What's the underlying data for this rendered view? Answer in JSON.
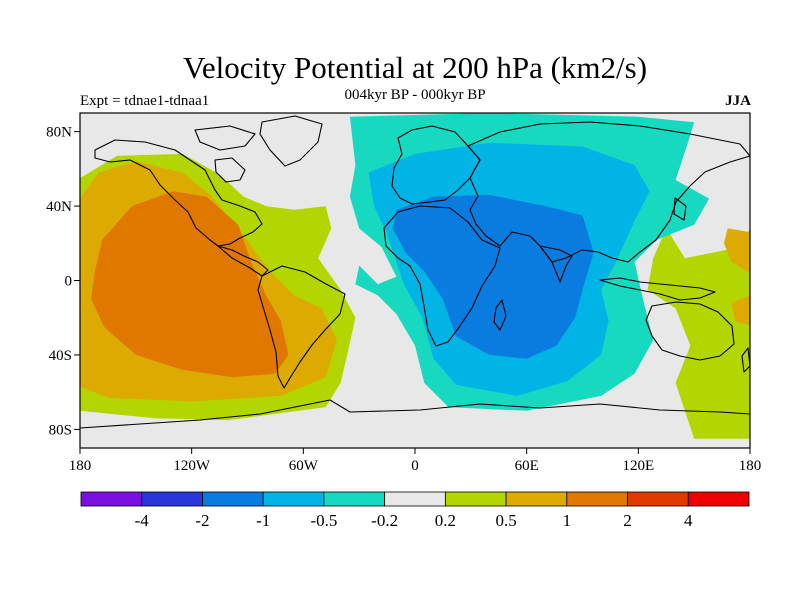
{
  "header": {
    "title": "Velocity Potential at 200 hPa (km2/s)",
    "subtitle": "004kyr BP - 000kyr BP",
    "left_label": "Expt = tdnae1-tdnaa1",
    "right_label": "JJA"
  },
  "map": {
    "projection": "cylindrical-equidistant",
    "lon_range": [
      -180,
      180
    ],
    "lat_range": [
      -90,
      90
    ],
    "lat_ticks": [
      {
        "value": 80,
        "label": "80N"
      },
      {
        "value": 40,
        "label": "40N"
      },
      {
        "value": 0,
        "label": "0"
      },
      {
        "value": -40,
        "label": "40S"
      },
      {
        "value": -80,
        "label": "80S"
      }
    ],
    "lon_ticks": [
      {
        "value": -180,
        "label": "180"
      },
      {
        "value": -120,
        "label": "120W"
      },
      {
        "value": -60,
        "label": "60W"
      },
      {
        "value": 0,
        "label": "0"
      },
      {
        "value": 60,
        "label": "60E"
      },
      {
        "value": 120,
        "label": "120E"
      },
      {
        "value": 180,
        "label": "180"
      }
    ],
    "background_color": "#e8e8e8"
  },
  "colorbar": {
    "colors": [
      "#7a10e0",
      "#2a36d8",
      "#0a7ce0",
      "#00b4e6",
      "#16d9c0",
      "#e8e8e8",
      "#b4d600",
      "#dcaa00",
      "#e07800",
      "#e03a00",
      "#ee0000"
    ],
    "labels": [
      "-4",
      "-2",
      "-1",
      "-0.5",
      "-0.2",
      "0.2",
      "0.5",
      "1",
      "2",
      "4"
    ]
  },
  "chart_data": {
    "type": "map",
    "variable": "Velocity Potential at 200 hPa",
    "units": "km2/s",
    "difference": "004kyr BP - 000kyr BP",
    "season": "JJA",
    "contour_levels": [
      -4,
      -2,
      -1,
      -0.5,
      -0.2,
      0.2,
      0.5,
      1,
      2,
      4
    ],
    "regions": [
      {
        "level": "0.2 to 0.5",
        "color": "#b4d600",
        "path": [
          [
            -180,
            55
          ],
          [
            -160,
            67
          ],
          [
            -125,
            68
          ],
          [
            -105,
            57
          ],
          [
            -92,
            45
          ],
          [
            -80,
            40
          ],
          [
            -65,
            38
          ],
          [
            -48,
            40
          ],
          [
            -45,
            28
          ],
          [
            -52,
            12
          ],
          [
            -40,
            -5
          ],
          [
            -32,
            -20
          ],
          [
            -36,
            -38
          ],
          [
            -40,
            -55
          ],
          [
            -48,
            -68
          ],
          [
            -100,
            -75
          ],
          [
            -140,
            -74
          ],
          [
            -180,
            -70
          ]
        ]
      },
      {
        "level": "0.5 to 1",
        "color": "#dcaa00",
        "path": [
          [
            -180,
            44
          ],
          [
            -170,
            58
          ],
          [
            -150,
            64
          ],
          [
            -125,
            58
          ],
          [
            -110,
            46
          ],
          [
            -95,
            28
          ],
          [
            -78,
            5
          ],
          [
            -65,
            -8
          ],
          [
            -50,
            -15
          ],
          [
            -42,
            -32
          ],
          [
            -48,
            -52
          ],
          [
            -72,
            -62
          ],
          [
            -120,
            -65
          ],
          [
            -165,
            -63
          ],
          [
            -180,
            -57
          ]
        ]
      },
      {
        "level": "1 to 2",
        "color": "#e07800",
        "path": [
          [
            -172,
            5
          ],
          [
            -168,
            22
          ],
          [
            -152,
            40
          ],
          [
            -130,
            48
          ],
          [
            -112,
            45
          ],
          [
            -95,
            30
          ],
          [
            -88,
            10
          ],
          [
            -80,
            -8
          ],
          [
            -72,
            -22
          ],
          [
            -68,
            -40
          ],
          [
            -75,
            -50
          ],
          [
            -98,
            -52
          ],
          [
            -125,
            -48
          ],
          [
            -150,
            -40
          ],
          [
            -167,
            -25
          ],
          [
            -174,
            -10
          ]
        ]
      },
      {
        "level": "0.2 to 0.5",
        "color": "#b4d600",
        "path": [
          [
            135,
            28
          ],
          [
            145,
            12
          ],
          [
            175,
            18
          ],
          [
            180,
            28
          ],
          [
            180,
            -85
          ],
          [
            150,
            -85
          ],
          [
            140,
            -55
          ],
          [
            148,
            -35
          ],
          [
            140,
            -15
          ],
          [
            125,
            -5
          ],
          [
            128,
            12
          ]
        ]
      },
      {
        "level": "0.5 to 1",
        "color": "#dcaa00",
        "path": [
          [
            168,
            28
          ],
          [
            180,
            26
          ],
          [
            180,
            4
          ],
          [
            170,
            10
          ],
          [
            166,
            20
          ]
        ]
      },
      {
        "level": "0.5 to 1",
        "color": "#dcaa00",
        "path": [
          [
            170,
            -12
          ],
          [
            180,
            -8
          ],
          [
            180,
            -24
          ],
          [
            172,
            -22
          ]
        ]
      },
      {
        "level": "-0.5 to -0.2",
        "color": "#16d9c0",
        "path": [
          [
            -35,
            88
          ],
          [
            40,
            90
          ],
          [
            120,
            88
          ],
          [
            150,
            85
          ],
          [
            146,
            72
          ],
          [
            140,
            54
          ],
          [
            158,
            44
          ],
          [
            150,
            30
          ],
          [
            130,
            22
          ],
          [
            118,
            10
          ],
          [
            122,
            -8
          ],
          [
            128,
            -32
          ],
          [
            118,
            -50
          ],
          [
            100,
            -62
          ],
          [
            60,
            -70
          ],
          [
            18,
            -68
          ],
          [
            5,
            -55
          ],
          [
            0,
            -35
          ],
          [
            -10,
            -18
          ],
          [
            -20,
            -8
          ],
          [
            -32,
            -2
          ],
          [
            -30,
            8
          ],
          [
            -20,
            -2
          ],
          [
            -10,
            2
          ],
          [
            -18,
            18
          ],
          [
            -30,
            28
          ],
          [
            -35,
            45
          ],
          [
            -32,
            62
          ]
        ]
      },
      {
        "level": "-1 to -0.5",
        "color": "#00b4e6",
        "path": [
          [
            -25,
            58
          ],
          [
            0,
            68
          ],
          [
            40,
            74
          ],
          [
            90,
            72
          ],
          [
            118,
            62
          ],
          [
            126,
            48
          ],
          [
            118,
            32
          ],
          [
            108,
            10
          ],
          [
            100,
            -5
          ],
          [
            104,
            -22
          ],
          [
            100,
            -40
          ],
          [
            82,
            -54
          ],
          [
            55,
            -62
          ],
          [
            22,
            -56
          ],
          [
            10,
            -42
          ],
          [
            4,
            -20
          ],
          [
            -6,
            -2
          ],
          [
            -10,
            10
          ],
          [
            -15,
            25
          ],
          [
            -22,
            40
          ]
        ]
      },
      {
        "level": "-2 to -1",
        "color": "#0a7ce0",
        "path": [
          [
            -10,
            38
          ],
          [
            10,
            45
          ],
          [
            40,
            46
          ],
          [
            70,
            40
          ],
          [
            90,
            35
          ],
          [
            96,
            15
          ],
          [
            90,
            -5
          ],
          [
            86,
            -20
          ],
          [
            76,
            -35
          ],
          [
            60,
            -42
          ],
          [
            40,
            -40
          ],
          [
            22,
            -30
          ],
          [
            15,
            -10
          ],
          [
            5,
            5
          ],
          [
            -5,
            15
          ],
          [
            -12,
            28
          ]
        ]
      }
    ]
  }
}
